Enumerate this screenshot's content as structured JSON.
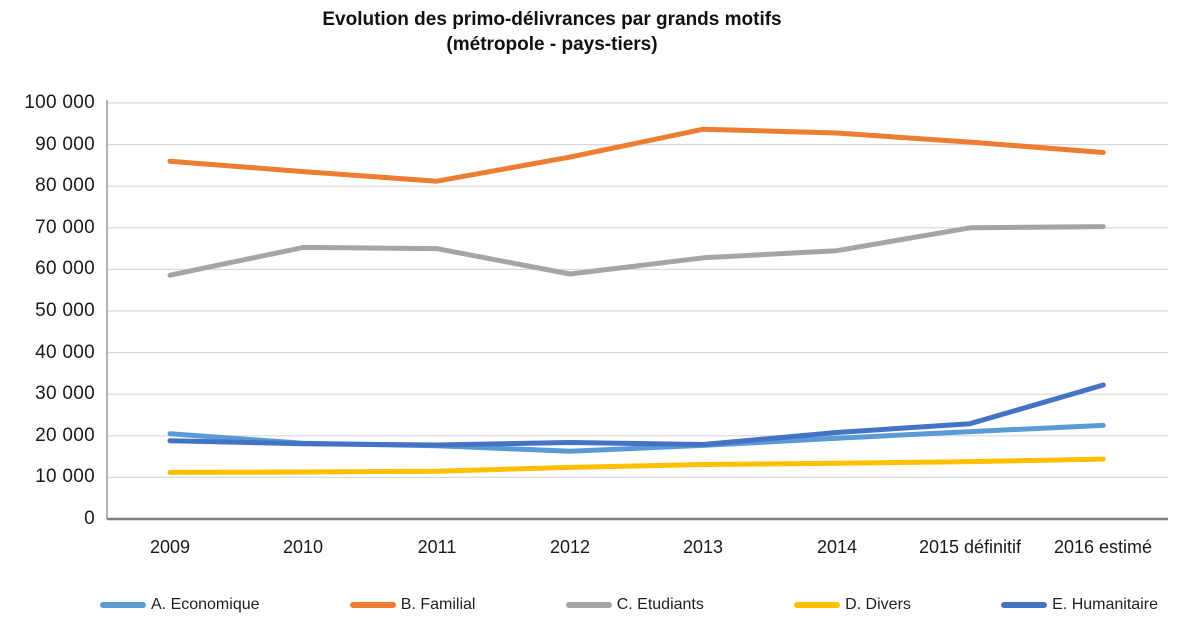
{
  "title": {
    "line1": "Evolution des primo-délivrances par grands motifs",
    "line2": "(métropole - pays-tiers)"
  },
  "chart_data": {
    "type": "line",
    "title": "Evolution des primo-délivrances par grands motifs (métropole - pays-tiers)",
    "categories": [
      "2009",
      "2010",
      "2011",
      "2012",
      "2013",
      "2014",
      "2015 définitif",
      "2016 estimé"
    ],
    "series": [
      {
        "name": "A. Economique",
        "color": "#5B9BD5",
        "values": [
          20500,
          18200,
          17600,
          16300,
          17700,
          19400,
          21000,
          22500
        ]
      },
      {
        "name": "B. Familial",
        "color": "#ED7D31",
        "values": [
          86000,
          83500,
          81200,
          87000,
          93700,
          92800,
          90600,
          88100
        ]
      },
      {
        "name": "C. Etudiants",
        "color": "#A5A5A5",
        "values": [
          58600,
          65300,
          65000,
          58900,
          62800,
          64500,
          70000,
          70300
        ]
      },
      {
        "name": "D. Divers",
        "color": "#FFC000",
        "values": [
          11200,
          11300,
          11500,
          12400,
          13100,
          13400,
          13800,
          14400
        ]
      },
      {
        "name": "E. Humanitaire",
        "color": "#4472C4",
        "values": [
          18800,
          18100,
          17800,
          18400,
          17900,
          20800,
          22900,
          32200
        ]
      }
    ],
    "ylim": [
      0,
      100000
    ],
    "y_ticks": [
      "100 000",
      "90 000",
      "80 000",
      "70 000",
      "60 000",
      "50 000",
      "40 000",
      "30 000",
      "20 000",
      "10 000",
      "0"
    ],
    "grid": "horizontal",
    "legend_position": "bottom",
    "axis_color": "#808080",
    "gridline_color": "#D9D9D9"
  }
}
